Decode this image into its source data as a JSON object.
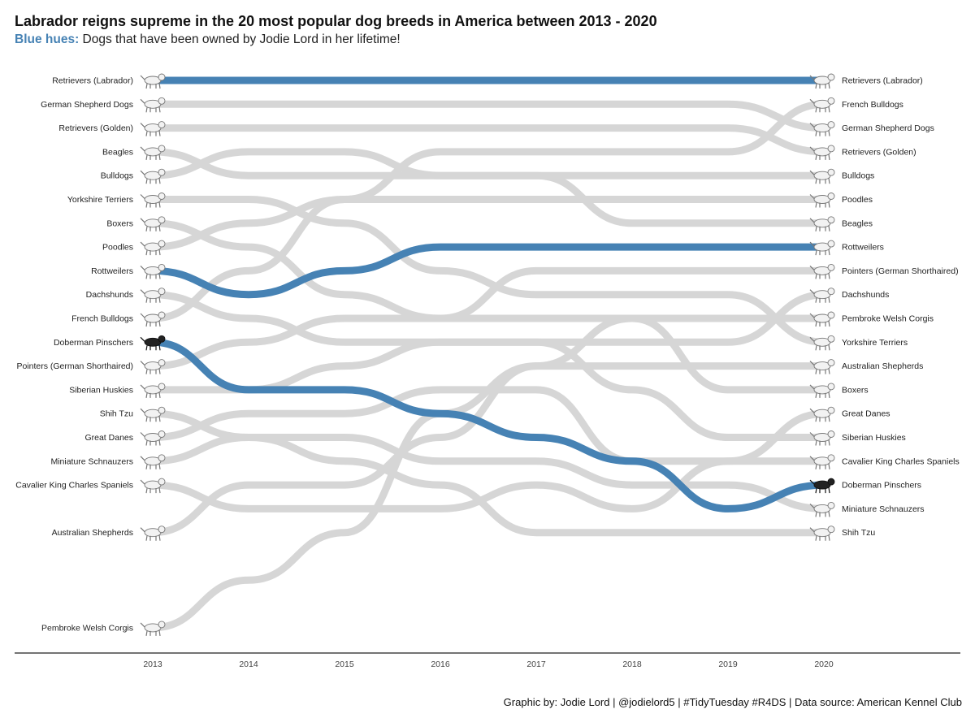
{
  "title": "Labrador reigns supreme in the 20 most popular dog breeds in America between 2013 - 2020",
  "subtitle": {
    "highlight": "Blue hues:",
    "text": " Dogs that have been owned by Jodie Lord in her lifetime!"
  },
  "caption": "Graphic by: Jodie Lord | @jodielord5 | #TidyTuesday #R4DS | Data source: American Kennel Club",
  "chart_data": {
    "type": "bump",
    "x": [
      2013,
      2014,
      2015,
      2016,
      2017,
      2018,
      2019,
      2020
    ],
    "x_tick_labels": [
      "2013",
      "2014",
      "2015",
      "2016",
      "2017",
      "2018",
      "2019",
      "2020"
    ],
    "ylim": [
      1,
      24
    ],
    "y_reversed": true,
    "grid": false,
    "colors": {
      "highlight": "#4682b4",
      "base": "#d6d6d6",
      "axis": "#222222",
      "tick_label": "#444444"
    },
    "series": [
      {
        "name": "Retrievers (Labrador)",
        "highlight": true,
        "values": [
          1,
          1,
          1,
          1,
          1,
          1,
          1,
          1
        ]
      },
      {
        "name": "German Shepherd Dogs",
        "highlight": false,
        "values": [
          2,
          2,
          2,
          2,
          2,
          2,
          2,
          3
        ]
      },
      {
        "name": "Retrievers (Golden)",
        "highlight": false,
        "values": [
          3,
          3,
          3,
          3,
          3,
          3,
          3,
          4
        ]
      },
      {
        "name": "Beagles",
        "highlight": false,
        "values": [
          4,
          5,
          5,
          5,
          5,
          7,
          7,
          7
        ]
      },
      {
        "name": "Bulldogs",
        "highlight": false,
        "values": [
          5,
          4,
          4,
          5,
          5,
          5,
          5,
          5
        ]
      },
      {
        "name": "Yorkshire Terriers",
        "highlight": false,
        "values": [
          6,
          6,
          7,
          9,
          10,
          10,
          10,
          12
        ]
      },
      {
        "name": "Boxers",
        "highlight": false,
        "values": [
          7,
          8,
          10,
          11,
          11,
          11,
          14,
          14
        ]
      },
      {
        "name": "Poodles",
        "highlight": false,
        "values": [
          8,
          7,
          6,
          6,
          6,
          6,
          6,
          6
        ]
      },
      {
        "name": "Rottweilers",
        "highlight": true,
        "values": [
          9,
          10,
          9,
          8,
          8,
          8,
          8,
          8
        ]
      },
      {
        "name": "Dachshunds",
        "highlight": false,
        "values": [
          10,
          11,
          12,
          12,
          12,
          12,
          12,
          10
        ]
      },
      {
        "name": "French Bulldogs",
        "highlight": false,
        "values": [
          11,
          9,
          6,
          4,
          4,
          4,
          4,
          2
        ]
      },
      {
        "name": "Doberman Pinschers",
        "highlight": true,
        "values": [
          12,
          14,
          14,
          15,
          16,
          17,
          19,
          18
        ]
      },
      {
        "name": "Pointers (German Shorthaired)",
        "highlight": false,
        "values": [
          13,
          12,
          11,
          11,
          9,
          9,
          9,
          9
        ]
      },
      {
        "name": "Siberian Huskies",
        "highlight": false,
        "values": [
          14,
          14,
          13,
          12,
          12,
          14,
          16,
          16
        ]
      },
      {
        "name": "Shih Tzu",
        "highlight": false,
        "values": [
          15,
          16,
          17,
          18,
          20,
          20,
          20,
          20
        ]
      },
      {
        "name": "Great Danes",
        "highlight": false,
        "values": [
          16,
          15,
          15,
          14,
          14,
          17,
          17,
          15
        ]
      },
      {
        "name": "Miniature Schnauzers",
        "highlight": false,
        "values": [
          17,
          16,
          16,
          17,
          17,
          18,
          18,
          19
        ]
      },
      {
        "name": "Cavalier King Charles Spaniels",
        "highlight": false,
        "values": [
          18,
          19,
          19,
          19,
          18,
          19,
          17,
          17
        ]
      },
      {
        "name": "Australian Shepherds",
        "highlight": false,
        "values": [
          20,
          18,
          18,
          16,
          13,
          13,
          13,
          13
        ]
      },
      {
        "name": "Pembroke Welsh Corgis",
        "highlight": false,
        "values": [
          24,
          22,
          20,
          15,
          13,
          11,
          11,
          11
        ]
      }
    ]
  }
}
